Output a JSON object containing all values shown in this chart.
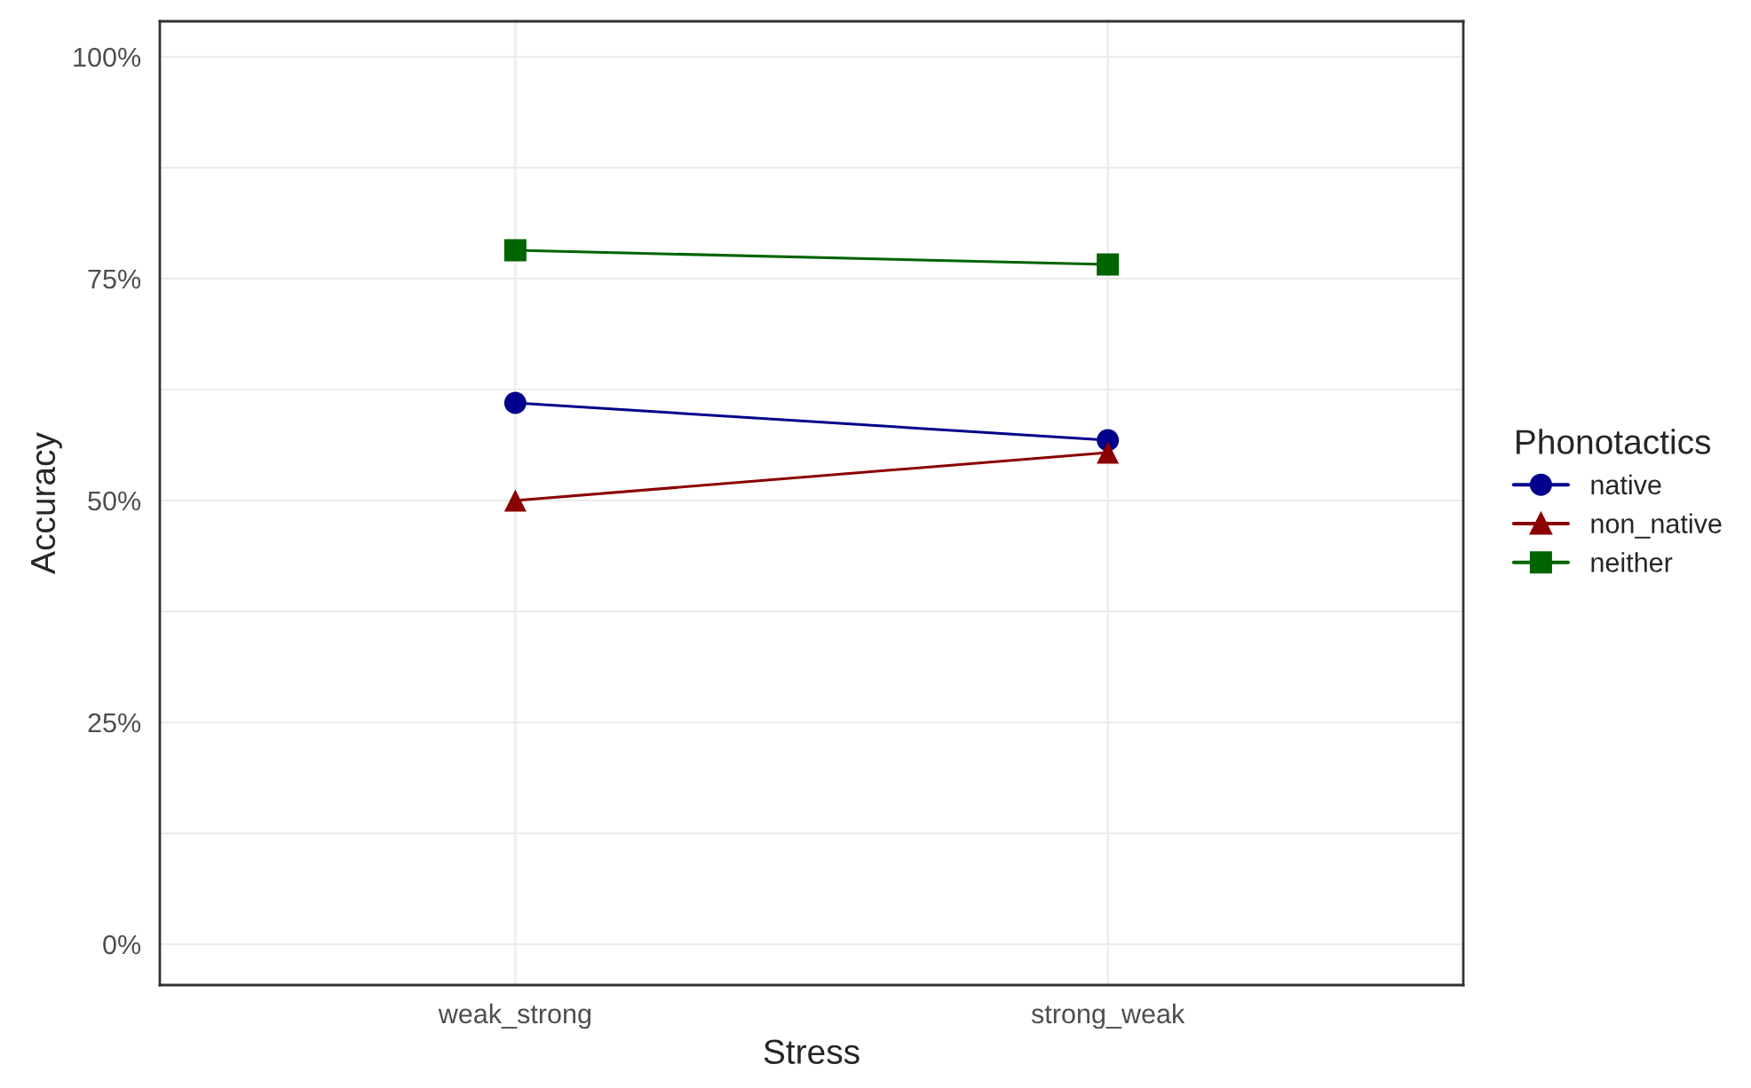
{
  "chart_data": {
    "type": "line",
    "xlabel": "Stress",
    "ylabel": "Accuracy",
    "legend_title": "Phonotactics",
    "categories": [
      "weak_strong",
      "strong_weak"
    ],
    "series": [
      {
        "name": "native",
        "color": "#00008b",
        "marker": "circle",
        "values": [
          61,
          56.8
        ]
      },
      {
        "name": "non_native",
        "color": "#8b0000",
        "marker": "triangle",
        "values": [
          50,
          55.4
        ]
      },
      {
        "name": "neither",
        "color": "#006400",
        "marker": "square",
        "values": [
          78.2,
          76.6
        ]
      }
    ],
    "ylim": [
      -4.6,
      104
    ],
    "yticks": [
      {
        "value": 0,
        "label": "0%"
      },
      {
        "value": 25,
        "label": "25%"
      },
      {
        "value": 50,
        "label": "50%"
      },
      {
        "value": 75,
        "label": "75%"
      },
      {
        "value": 100,
        "label": "100%"
      }
    ],
    "grid": true,
    "legend": "right",
    "line_style": "solid"
  }
}
